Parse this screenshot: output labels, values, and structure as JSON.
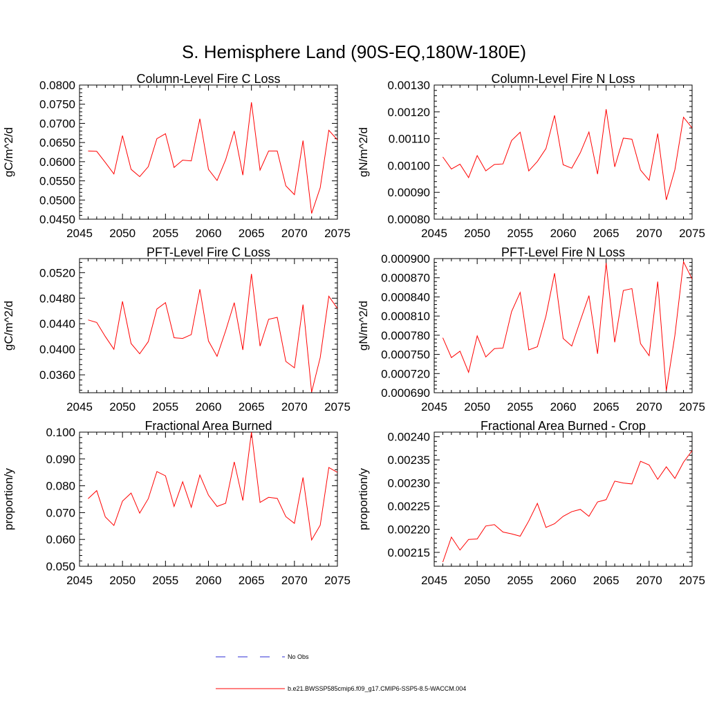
{
  "title": "S. Hemisphere Land (90S-EQ,180W-180E)",
  "colors": {
    "model": "#ff0000",
    "obs": "#2b2bd6",
    "axis": "#000000"
  },
  "legend": {
    "obs_label": "No Obs",
    "model_label": "b.e21.BWSSP585cmip6.f09_g17.CMIP6-SSP5-8.5-WACCM.004"
  },
  "chart_data": [
    {
      "type": "line",
      "title": "Column-Level Fire C Loss",
      "xlabel": "",
      "ylabel": "gC/m^2/d",
      "xlim": [
        2045,
        2075
      ],
      "xticks": [
        "2045",
        "2050",
        "2055",
        "2060",
        "2065",
        "2070",
        "2075"
      ],
      "ylim": [
        0.045,
        0.08
      ],
      "yticks": [
        "0.0450",
        "0.0500",
        "0.0550",
        "0.0600",
        "0.0650",
        "0.0700",
        "0.0750",
        "0.0800"
      ],
      "x": [
        2046,
        2047,
        2048,
        2049,
        2050,
        2051,
        2052,
        2053,
        2054,
        2055,
        2056,
        2057,
        2058,
        2059,
        2060,
        2061,
        2062,
        2063,
        2064,
        2065,
        2066,
        2067,
        2068,
        2069,
        2070,
        2071,
        2072,
        2073,
        2074,
        2075
      ],
      "values": [
        0.0628,
        0.0627,
        0.0598,
        0.0568,
        0.0668,
        0.058,
        0.0561,
        0.0587,
        0.066,
        0.0673,
        0.0585,
        0.0604,
        0.0602,
        0.0712,
        0.058,
        0.0551,
        0.0605,
        0.068,
        0.0565,
        0.0755,
        0.0578,
        0.0628,
        0.0628,
        0.0537,
        0.0514,
        0.0655,
        0.0465,
        0.0532,
        0.0682,
        0.0657
      ]
    },
    {
      "type": "line",
      "title": "Column-Level Fire N Loss",
      "xlabel": "",
      "ylabel": "gN/m^2/d",
      "xlim": [
        2045,
        2075
      ],
      "xticks": [
        "2045",
        "2050",
        "2055",
        "2060",
        "2065",
        "2070",
        "2075"
      ],
      "ylim": [
        0.0008,
        0.0013
      ],
      "yticks": [
        "0.00080",
        "0.00090",
        "0.00100",
        "0.00110",
        "0.00120",
        "0.00130"
      ],
      "x": [
        2046,
        2047,
        2048,
        2049,
        2050,
        2051,
        2052,
        2053,
        2054,
        2055,
        2056,
        2057,
        2058,
        2059,
        2060,
        2061,
        2062,
        2063,
        2064,
        2065,
        2066,
        2067,
        2068,
        2069,
        2070,
        2071,
        2072,
        2073,
        2074,
        2075
      ],
      "values": [
        0.001032,
        0.000987,
        0.001005,
        0.000955,
        0.001037,
        0.00098,
        0.001004,
        0.001006,
        0.001093,
        0.001124,
        0.00098,
        0.001015,
        0.001063,
        0.001187,
        0.001003,
        0.00099,
        0.001048,
        0.001125,
        0.000968,
        0.00121,
        0.000995,
        0.001102,
        0.001098,
        0.000983,
        0.000945,
        0.001119,
        0.000872,
        0.000985,
        0.00118,
        0.00114
      ]
    },
    {
      "type": "line",
      "title": "PFT-Level Fire C Loss",
      "xlabel": "",
      "ylabel": "gC/m^2/d",
      "xlim": [
        2045,
        2075
      ],
      "xticks": [
        "2045",
        "2050",
        "2055",
        "2060",
        "2065",
        "2070",
        "2075"
      ],
      "ylim": [
        0.0332,
        0.0542
      ],
      "yticks": [
        "0.0360",
        "0.0400",
        "0.0440",
        "0.0480",
        "0.0520"
      ],
      "x": [
        2046,
        2047,
        2048,
        2049,
        2050,
        2051,
        2052,
        2053,
        2054,
        2055,
        2056,
        2057,
        2058,
        2059,
        2060,
        2061,
        2062,
        2063,
        2064,
        2065,
        2066,
        2067,
        2068,
        2069,
        2070,
        2071,
        2072,
        2073,
        2074,
        2075
      ],
      "values": [
        0.0446,
        0.0442,
        0.042,
        0.04,
        0.0475,
        0.0409,
        0.0393,
        0.0412,
        0.0463,
        0.0473,
        0.0418,
        0.0417,
        0.0423,
        0.0494,
        0.0413,
        0.0389,
        0.0429,
        0.0473,
        0.0399,
        0.0518,
        0.0405,
        0.0447,
        0.045,
        0.0381,
        0.0371,
        0.047,
        0.0333,
        0.0387,
        0.0483,
        0.0464
      ]
    },
    {
      "type": "line",
      "title": "PFT-Level Fire N Loss",
      "xlabel": "",
      "ylabel": "gN/m^2/d",
      "xlim": [
        2045,
        2075
      ],
      "xticks": [
        "2045",
        "2050",
        "2055",
        "2060",
        "2065",
        "2070",
        "2075"
      ],
      "ylim": [
        0.00069,
        0.0009
      ],
      "yticks": [
        "0.000690",
        "0.000720",
        "0.000750",
        "0.000780",
        "0.000810",
        "0.000840",
        "0.000870",
        "0.000900"
      ],
      "x": [
        2046,
        2047,
        2048,
        2049,
        2050,
        2051,
        2052,
        2053,
        2054,
        2055,
        2056,
        2057,
        2058,
        2059,
        2060,
        2061,
        2062,
        2063,
        2064,
        2065,
        2066,
        2067,
        2068,
        2069,
        2070,
        2071,
        2072,
        2073,
        2074,
        2075
      ],
      "values": [
        0.000776,
        0.000745,
        0.000755,
        0.000722,
        0.000779,
        0.000746,
        0.000759,
        0.00076,
        0.000817,
        0.000847,
        0.000757,
        0.000762,
        0.00081,
        0.000877,
        0.000775,
        0.000763,
        0.000803,
        0.000842,
        0.000751,
        0.000893,
        0.000769,
        0.00085,
        0.000853,
        0.000767,
        0.000748,
        0.000864,
        0.000693,
        0.00078,
        0.000895,
        0.000868
      ]
    },
    {
      "type": "line",
      "title": "Fractional Area Burned",
      "xlabel": "",
      "ylabel": "proportion/y",
      "xlim": [
        2045,
        2075
      ],
      "xticks": [
        "2045",
        "2050",
        "2055",
        "2060",
        "2065",
        "2070",
        "2075"
      ],
      "ylim": [
        0.05,
        0.1
      ],
      "yticks": [
        "0.050",
        "0.060",
        "0.070",
        "0.080",
        "0.090",
        "0.100"
      ],
      "x": [
        2046,
        2047,
        2048,
        2049,
        2050,
        2051,
        2052,
        2053,
        2054,
        2055,
        2056,
        2057,
        2058,
        2059,
        2060,
        2061,
        2062,
        2063,
        2064,
        2065,
        2066,
        2067,
        2068,
        2069,
        2070,
        2071,
        2072,
        2073,
        2074,
        2075
      ],
      "values": [
        0.0752,
        0.0782,
        0.0684,
        0.0652,
        0.0743,
        0.0773,
        0.0698,
        0.0752,
        0.0853,
        0.0837,
        0.0723,
        0.0815,
        0.072,
        0.084,
        0.0765,
        0.0723,
        0.0735,
        0.0889,
        0.0745,
        0.1,
        0.0738,
        0.0757,
        0.0753,
        0.0685,
        0.066,
        0.0831,
        0.0598,
        0.0653,
        0.0868,
        0.085
      ]
    },
    {
      "type": "line",
      "title": "Fractional Area Burned - Crop",
      "xlabel": "",
      "ylabel": "proportion/y",
      "xlim": [
        2045,
        2075
      ],
      "xticks": [
        "2045",
        "2050",
        "2055",
        "2060",
        "2065",
        "2070",
        "2075"
      ],
      "ylim": [
        0.00212,
        0.00241
      ],
      "yticks": [
        "0.00215",
        "0.00220",
        "0.00225",
        "0.00230",
        "0.00235",
        "0.00240"
      ],
      "x": [
        2046,
        2047,
        2048,
        2049,
        2050,
        2051,
        2052,
        2053,
        2054,
        2055,
        2056,
        2057,
        2058,
        2059,
        2060,
        2061,
        2062,
        2063,
        2064,
        2065,
        2066,
        2067,
        2068,
        2069,
        2070,
        2071,
        2072,
        2073,
        2074,
        2075
      ],
      "values": [
        0.002129,
        0.002183,
        0.002155,
        0.002178,
        0.002179,
        0.002207,
        0.00221,
        0.002194,
        0.00219,
        0.002185,
        0.002218,
        0.002256,
        0.002204,
        0.002212,
        0.002228,
        0.002238,
        0.002243,
        0.002228,
        0.002259,
        0.002264,
        0.002304,
        0.0023,
        0.002298,
        0.002347,
        0.002339,
        0.002308,
        0.002335,
        0.00231,
        0.002345,
        0.00237
      ]
    }
  ]
}
